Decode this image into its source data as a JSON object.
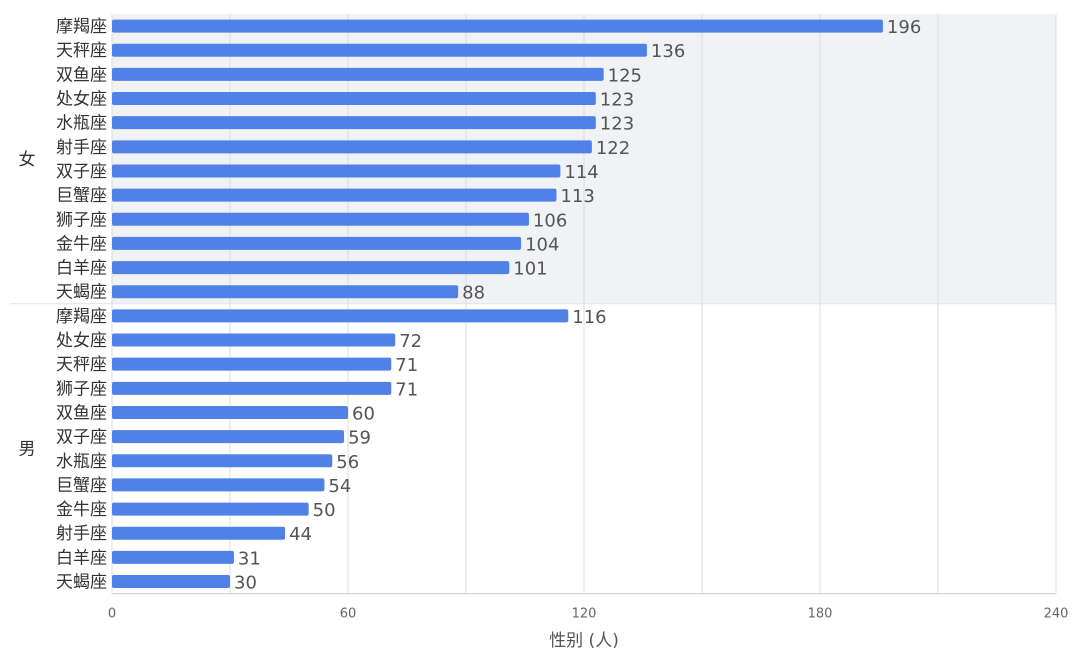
{
  "chart_data": {
    "type": "bar",
    "orientation": "horizontal",
    "xlabel": "性别 (人)",
    "xlim": [
      0,
      240
    ],
    "xticks": [
      0,
      60,
      120,
      180,
      240
    ],
    "grid": true,
    "colors": {
      "bar": "#4f81e6",
      "group_band": "#f0f2f5",
      "grid": "#dcdcdc"
    },
    "groups": [
      {
        "name": "女",
        "items": [
          {
            "label": "摩羯座",
            "value": 196
          },
          {
            "label": "天秤座",
            "value": 136
          },
          {
            "label": "双鱼座",
            "value": 125
          },
          {
            "label": "处女座",
            "value": 123
          },
          {
            "label": "水瓶座",
            "value": 123
          },
          {
            "label": "射手座",
            "value": 122
          },
          {
            "label": "双子座",
            "value": 114
          },
          {
            "label": "巨蟹座",
            "value": 113
          },
          {
            "label": "狮子座",
            "value": 106
          },
          {
            "label": "金牛座",
            "value": 104
          },
          {
            "label": "白羊座",
            "value": 101
          },
          {
            "label": "天蝎座",
            "value": 88
          }
        ]
      },
      {
        "name": "男",
        "items": [
          {
            "label": "摩羯座",
            "value": 116
          },
          {
            "label": "处女座",
            "value": 72
          },
          {
            "label": "天秤座",
            "value": 71
          },
          {
            "label": "狮子座",
            "value": 71
          },
          {
            "label": "双鱼座",
            "value": 60
          },
          {
            "label": "双子座",
            "value": 59
          },
          {
            "label": "水瓶座",
            "value": 56
          },
          {
            "label": "巨蟹座",
            "value": 54
          },
          {
            "label": "金牛座",
            "value": 50
          },
          {
            "label": "射手座",
            "value": 44
          },
          {
            "label": "白羊座",
            "value": 31
          },
          {
            "label": "天蝎座",
            "value": 30
          }
        ]
      }
    ]
  }
}
